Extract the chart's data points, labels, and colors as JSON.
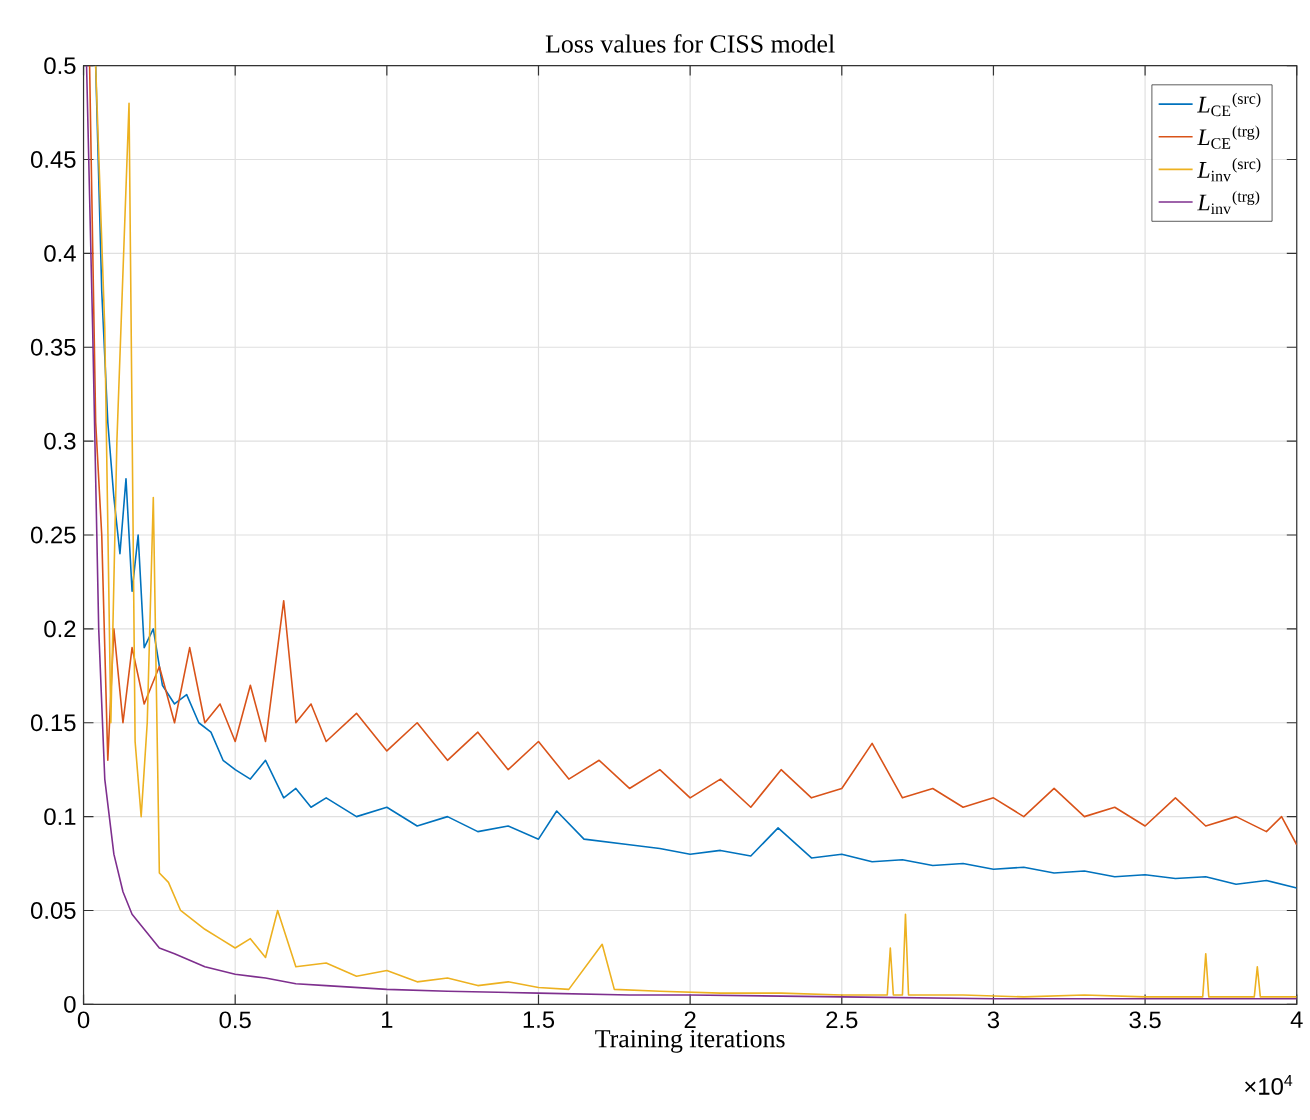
{
  "chart_data": {
    "type": "line",
    "title": "Loss values for CISS model",
    "xlabel": "Training iterations",
    "annotations": [
      "×10$^{4}$"
    ],
    "xlim": [
      0,
      4
    ],
    "ylim": [
      0,
      0.5
    ],
    "xticks": [
      0,
      0.5,
      1,
      1.5,
      2,
      2.5,
      3,
      3.5,
      4
    ],
    "yticks": [
      0,
      0.05,
      0.1,
      0.15,
      0.2,
      0.25,
      0.3,
      0.35,
      0.4,
      0.45,
      0.5
    ],
    "grid": true,
    "legend": "top right",
    "series": [
      {
        "name": "*L*$_{CE}$$^{(src)}$",
        "color": "#0072bd",
        "x": [
          0.04,
          0.06,
          0.08,
          0.1,
          0.12,
          0.14,
          0.16,
          0.18,
          0.2,
          0.23,
          0.26,
          0.3,
          0.34,
          0.38,
          0.42,
          0.46,
          0.5,
          0.55,
          0.6,
          0.66,
          0.7,
          0.75,
          0.8,
          0.9,
          1.0,
          1.1,
          1.2,
          1.3,
          1.4,
          1.5,
          1.56,
          1.65,
          1.8,
          1.9,
          2.0,
          2.1,
          2.2,
          2.29,
          2.4,
          2.5,
          2.6,
          2.7,
          2.8,
          2.9,
          3.0,
          3.1,
          3.2,
          3.3,
          3.4,
          3.5,
          3.6,
          3.7,
          3.8,
          3.9,
          4.0
        ],
        "values": [
          0.5,
          0.38,
          0.31,
          0.27,
          0.24,
          0.28,
          0.22,
          0.25,
          0.19,
          0.2,
          0.17,
          0.16,
          0.165,
          0.15,
          0.145,
          0.13,
          0.125,
          0.12,
          0.13,
          0.11,
          0.115,
          0.105,
          0.11,
          0.1,
          0.105,
          0.095,
          0.1,
          0.092,
          0.095,
          0.088,
          0.103,
          0.088,
          0.085,
          0.083,
          0.08,
          0.082,
          0.079,
          0.094,
          0.078,
          0.08,
          0.076,
          0.077,
          0.074,
          0.075,
          0.072,
          0.073,
          0.07,
          0.071,
          0.068,
          0.069,
          0.067,
          0.068,
          0.064,
          0.066,
          0.062
        ]
      },
      {
        "name": "*L*$_{CE}$$^{(trg)}$",
        "color": "#d95319",
        "x": [
          0.02,
          0.04,
          0.06,
          0.08,
          0.1,
          0.13,
          0.16,
          0.2,
          0.25,
          0.3,
          0.35,
          0.4,
          0.45,
          0.5,
          0.55,
          0.6,
          0.66,
          0.7,
          0.75,
          0.8,
          0.9,
          1.0,
          1.1,
          1.2,
          1.3,
          1.4,
          1.5,
          1.6,
          1.7,
          1.8,
          1.9,
          2.0,
          2.1,
          2.2,
          2.3,
          2.4,
          2.5,
          2.6,
          2.7,
          2.8,
          2.9,
          3.0,
          3.1,
          3.2,
          3.3,
          3.4,
          3.5,
          3.6,
          3.7,
          3.8,
          3.9,
          3.95,
          4.0
        ],
        "values": [
          0.5,
          0.31,
          0.25,
          0.13,
          0.2,
          0.15,
          0.19,
          0.16,
          0.18,
          0.15,
          0.19,
          0.15,
          0.16,
          0.14,
          0.17,
          0.14,
          0.215,
          0.15,
          0.16,
          0.14,
          0.155,
          0.135,
          0.15,
          0.13,
          0.145,
          0.125,
          0.14,
          0.12,
          0.13,
          0.115,
          0.125,
          0.11,
          0.12,
          0.105,
          0.125,
          0.11,
          0.115,
          0.139,
          0.11,
          0.115,
          0.105,
          0.11,
          0.1,
          0.115,
          0.1,
          0.105,
          0.095,
          0.11,
          0.095,
          0.1,
          0.092,
          0.1,
          0.085
        ]
      },
      {
        "name": "*L*$_{inv}$$^{(src)}$",
        "color": "#edb120",
        "x": [
          0.04,
          0.07,
          0.09,
          0.11,
          0.15,
          0.17,
          0.19,
          0.21,
          0.23,
          0.25,
          0.28,
          0.32,
          0.36,
          0.4,
          0.45,
          0.5,
          0.55,
          0.6,
          0.64,
          0.7,
          0.8,
          0.9,
          1.0,
          1.1,
          1.2,
          1.3,
          1.4,
          1.5,
          1.6,
          1.71,
          1.75,
          1.9,
          2.1,
          2.3,
          2.5,
          2.65,
          2.66,
          2.67,
          2.7,
          2.71,
          2.72,
          2.9,
          3.1,
          3.3,
          3.5,
          3.69,
          3.7,
          3.71,
          3.86,
          3.87,
          3.88,
          4.0
        ],
        "values": [
          0.5,
          0.36,
          0.15,
          0.3,
          0.48,
          0.14,
          0.1,
          0.15,
          0.27,
          0.07,
          0.065,
          0.05,
          0.045,
          0.04,
          0.035,
          0.03,
          0.035,
          0.025,
          0.05,
          0.02,
          0.022,
          0.015,
          0.018,
          0.012,
          0.014,
          0.01,
          0.012,
          0.009,
          0.008,
          0.032,
          0.008,
          0.007,
          0.006,
          0.006,
          0.005,
          0.005,
          0.03,
          0.005,
          0.005,
          0.048,
          0.005,
          0.005,
          0.004,
          0.005,
          0.004,
          0.004,
          0.027,
          0.004,
          0.004,
          0.02,
          0.004,
          0.004
        ]
      },
      {
        "name": "*L*$_{inv}$$^{(trg)}$",
        "color": "#7e2f8e",
        "x": [
          0.01,
          0.03,
          0.05,
          0.07,
          0.1,
          0.13,
          0.16,
          0.2,
          0.25,
          0.3,
          0.4,
          0.5,
          0.6,
          0.7,
          0.8,
          1.0,
          1.2,
          1.5,
          1.8,
          2.0,
          2.5,
          3.0,
          3.5,
          4.0
        ],
        "values": [
          0.5,
          0.36,
          0.2,
          0.12,
          0.08,
          0.06,
          0.048,
          0.04,
          0.03,
          0.027,
          0.02,
          0.016,
          0.014,
          0.011,
          0.01,
          0.008,
          0.007,
          0.006,
          0.005,
          0.005,
          0.004,
          0.003,
          0.003,
          0.003
        ]
      }
    ]
  }
}
